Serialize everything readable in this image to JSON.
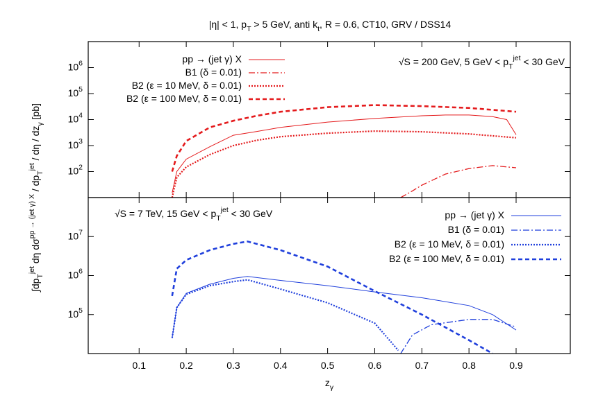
{
  "chart_data": [
    {
      "type": "line",
      "title": "|η| < 1, p_{T} > 5 GeV, anti k_{t}, R = 0.6, CT10, GRV / DSS14",
      "ylabel": "∫dp_{T}^{jet} dη dσ^{pp → (jet γ) X} / dp_{T}^{jet} / dη / dz_{γ}   [pb]",
      "annotation": "√S = 200 GeV, 5 GeV < p_{T}^{jet} < 30 GeV",
      "log_y": true,
      "legend": "upper left",
      "xlim": [
        -0.008,
        1.015
      ],
      "ylim": [
        10,
        10000000
      ],
      "yticks": [
        {
          "value": 100,
          "label": "10^{2}"
        },
        {
          "value": 1000,
          "label": "10^{3}"
        },
        {
          "value": 10000,
          "label": "10^{4}"
        },
        {
          "value": 100000,
          "label": "10^{5}"
        },
        {
          "value": 1000000,
          "label": "10^{6}"
        }
      ],
      "series": [
        {
          "name": "pp → (jet γ) X",
          "color": "#e41a1c",
          "style": "solid",
          "x": [
            0.17,
            0.18,
            0.2,
            0.25,
            0.3,
            0.35,
            0.4,
            0.5,
            0.6,
            0.7,
            0.75,
            0.8,
            0.85,
            0.88,
            0.9
          ],
          "values": [
            15,
            100,
            300,
            900,
            2500,
            3500,
            5000,
            8000,
            11000,
            14000,
            15000,
            15000,
            13000,
            10000,
            2600
          ]
        },
        {
          "name": "B1 (δ = 0.01)",
          "color": "#e41a1c",
          "style": "dashdot",
          "x": [
            0.655,
            0.68,
            0.7,
            0.75,
            0.8,
            0.85,
            0.9
          ],
          "values": [
            10,
            18,
            30,
            80,
            130,
            170,
            140
          ]
        },
        {
          "name": "B2 (ε = 10 MeV, δ = 0.01)",
          "color": "#e41a1c",
          "style": "dotted",
          "x": [
            0.17,
            0.18,
            0.2,
            0.25,
            0.3,
            0.35,
            0.4,
            0.5,
            0.6,
            0.7,
            0.8,
            0.9
          ],
          "values": [
            10,
            60,
            150,
            450,
            1000,
            1600,
            2200,
            3000,
            3600,
            3400,
            2800,
            2000
          ]
        },
        {
          "name": "B2 (ε = 100 MeV, δ = 0.01)",
          "color": "#e41a1c",
          "style": "dashed",
          "x": [
            0.17,
            0.18,
            0.2,
            0.25,
            0.3,
            0.35,
            0.4,
            0.5,
            0.6,
            0.7,
            0.8,
            0.9
          ],
          "values": [
            100,
            400,
            1500,
            5000,
            9000,
            14000,
            20000,
            30000,
            36000,
            33000,
            28000,
            20000
          ]
        }
      ]
    },
    {
      "type": "line",
      "xlabel": "z_{γ}",
      "annotation": "√S = 7 TeV, 15 GeV < p_{T}^{jet} < 30 GeV",
      "log_y": true,
      "legend": "upper right",
      "xlim": [
        -0.008,
        1.015
      ],
      "ylim": [
        10000,
        100000000
      ],
      "xticks": [
        0.1,
        0.2,
        0.3,
        0.4,
        0.5,
        0.6,
        0.7,
        0.8,
        0.9
      ],
      "yticks": [
        {
          "value": 100000,
          "label": "10^{5}"
        },
        {
          "value": 1000000,
          "label": "10^{6}"
        },
        {
          "value": 10000000,
          "label": "10^{7}"
        }
      ],
      "series": [
        {
          "name": "pp → (jet γ) X",
          "color": "#1f3fdc",
          "style": "solid",
          "x": [
            0.17,
            0.18,
            0.2,
            0.25,
            0.3,
            0.33,
            0.4,
            0.5,
            0.6,
            0.7,
            0.8,
            0.85,
            0.9
          ],
          "values": [
            25000,
            150000,
            350000,
            600000,
            850000,
            950000,
            750000,
            550000,
            380000,
            270000,
            170000,
            100000,
            40000
          ]
        },
        {
          "name": "B1 (δ = 0.01)",
          "color": "#1f3fdc",
          "style": "dashdot",
          "x": [
            0.655,
            0.68,
            0.72,
            0.8,
            0.85,
            0.9
          ],
          "values": [
            10000,
            30000,
            55000,
            75000,
            75000,
            48000
          ]
        },
        {
          "name": "B2 (ε = 10 MeV, δ = 0.01)",
          "color": "#1f3fdc",
          "style": "dotted",
          "x": [
            0.17,
            0.18,
            0.2,
            0.25,
            0.3,
            0.33,
            0.4,
            0.5,
            0.6,
            0.65
          ],
          "values": [
            25000,
            150000,
            330000,
            550000,
            700000,
            780000,
            450000,
            200000,
            60000,
            12000
          ]
        },
        {
          "name": "B2 (ε = 100 MeV, δ = 0.01)",
          "color": "#1f3fdc",
          "style": "dashed",
          "x": [
            0.17,
            0.18,
            0.2,
            0.25,
            0.3,
            0.33,
            0.4,
            0.5,
            0.6,
            0.7,
            0.8,
            0.85
          ],
          "values": [
            300000,
            1500000,
            2500000,
            4500000,
            6500000,
            7500000,
            4500000,
            1700000,
            400000,
            100000,
            22000,
            10000
          ]
        }
      ]
    }
  ]
}
